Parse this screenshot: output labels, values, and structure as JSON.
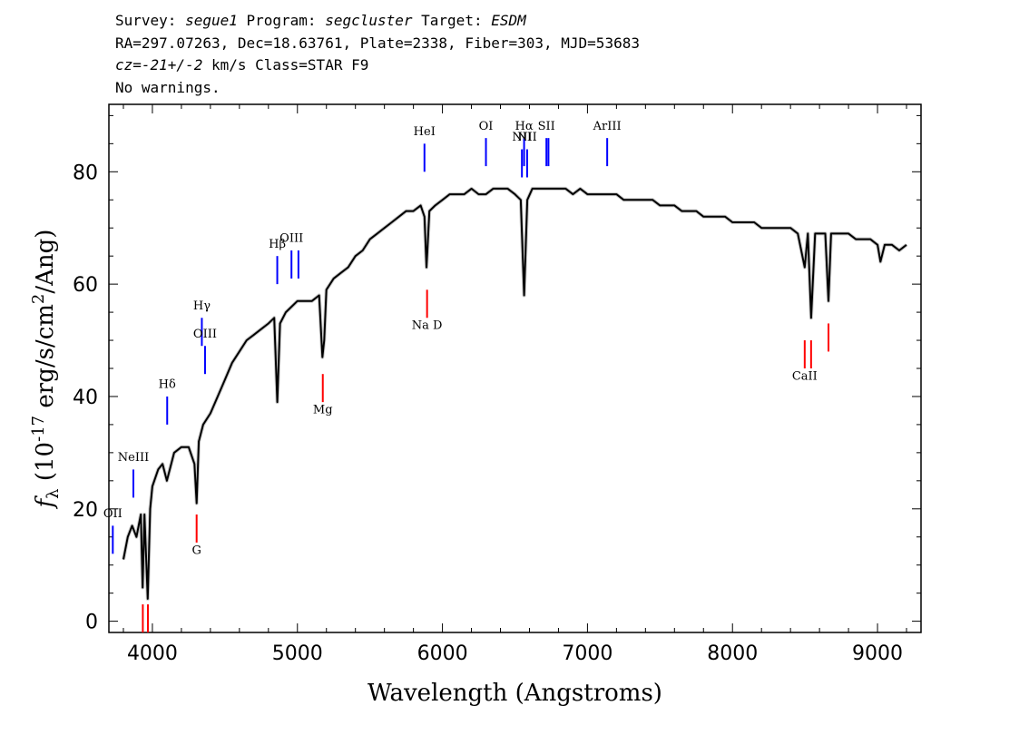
{
  "header": {
    "line1_prefix": "Survey: ",
    "survey": "segue1",
    "program_prefix": " Program: ",
    "program": "segcluster",
    "target_prefix": " Target: ",
    "target": "ESDM",
    "line2": "RA=297.07263, Dec=18.63761, Plate=2338, Fiber=303, MJD=53683",
    "line3_cz": "cz=-21+/-2",
    "line3_rest": " km/s Class=STAR F9",
    "line4": "No warnings."
  },
  "chart_data": {
    "type": "line",
    "title": "",
    "xlabel": "Wavelength (Angstroms)",
    "ylabel": "f_λ (10^-17 erg/s/cm^2/Ang)",
    "xlim": [
      3700,
      9300
    ],
    "ylim": [
      -2,
      92
    ],
    "xticks": [
      4000,
      5000,
      6000,
      7000,
      8000,
      9000
    ],
    "yticks": [
      0,
      20,
      40,
      60,
      80
    ],
    "grid": false,
    "series": [
      {
        "color": "#000000",
        "points": [
          [
            3800,
            11
          ],
          [
            3830,
            15
          ],
          [
            3860,
            17
          ],
          [
            3890,
            15
          ],
          [
            3920,
            19
          ],
          [
            3933,
            6
          ],
          [
            3945,
            19
          ],
          [
            3968,
            4
          ],
          [
            3985,
            20
          ],
          [
            4000,
            24
          ],
          [
            4040,
            27
          ],
          [
            4070,
            28
          ],
          [
            4100,
            25
          ],
          [
            4150,
            30
          ],
          [
            4200,
            31
          ],
          [
            4250,
            31
          ],
          [
            4290,
            28
          ],
          [
            4305,
            21
          ],
          [
            4320,
            32
          ],
          [
            4350,
            35
          ],
          [
            4400,
            37
          ],
          [
            4450,
            40
          ],
          [
            4500,
            43
          ],
          [
            4550,
            46
          ],
          [
            4600,
            48
          ],
          [
            4650,
            50
          ],
          [
            4700,
            51
          ],
          [
            4750,
            52
          ],
          [
            4800,
            53
          ],
          [
            4840,
            54
          ],
          [
            4861,
            39
          ],
          [
            4880,
            53
          ],
          [
            4920,
            55
          ],
          [
            4960,
            56
          ],
          [
            5000,
            57
          ],
          [
            5050,
            57
          ],
          [
            5100,
            57
          ],
          [
            5150,
            58
          ],
          [
            5172,
            47
          ],
          [
            5185,
            50
          ],
          [
            5200,
            59
          ],
          [
            5250,
            61
          ],
          [
            5300,
            62
          ],
          [
            5350,
            63
          ],
          [
            5400,
            65
          ],
          [
            5450,
            66
          ],
          [
            5500,
            68
          ],
          [
            5550,
            69
          ],
          [
            5600,
            70
          ],
          [
            5650,
            71
          ],
          [
            5700,
            72
          ],
          [
            5750,
            73
          ],
          [
            5800,
            73
          ],
          [
            5850,
            74
          ],
          [
            5876,
            72
          ],
          [
            5890,
            63
          ],
          [
            5896,
            66
          ],
          [
            5910,
            73
          ],
          [
            5950,
            74
          ],
          [
            6000,
            75
          ],
          [
            6050,
            76
          ],
          [
            6100,
            76
          ],
          [
            6150,
            76
          ],
          [
            6200,
            77
          ],
          [
            6250,
            76
          ],
          [
            6300,
            76
          ],
          [
            6350,
            77
          ],
          [
            6400,
            77
          ],
          [
            6450,
            77
          ],
          [
            6500,
            76
          ],
          [
            6540,
            75
          ],
          [
            6563,
            58
          ],
          [
            6585,
            75
          ],
          [
            6620,
            77
          ],
          [
            6650,
            77
          ],
          [
            6700,
            77
          ],
          [
            6750,
            77
          ],
          [
            6800,
            77
          ],
          [
            6850,
            77
          ],
          [
            6900,
            76
          ],
          [
            6950,
            77
          ],
          [
            7000,
            76
          ],
          [
            7050,
            76
          ],
          [
            7100,
            76
          ],
          [
            7150,
            76
          ],
          [
            7200,
            76
          ],
          [
            7250,
            75
          ],
          [
            7300,
            75
          ],
          [
            7350,
            75
          ],
          [
            7400,
            75
          ],
          [
            7450,
            75
          ],
          [
            7500,
            74
          ],
          [
            7550,
            74
          ],
          [
            7600,
            74
          ],
          [
            7650,
            73
          ],
          [
            7700,
            73
          ],
          [
            7750,
            73
          ],
          [
            7800,
            72
          ],
          [
            7850,
            72
          ],
          [
            7900,
            72
          ],
          [
            7950,
            72
          ],
          [
            8000,
            71
          ],
          [
            8050,
            71
          ],
          [
            8100,
            71
          ],
          [
            8150,
            71
          ],
          [
            8200,
            70
          ],
          [
            8250,
            70
          ],
          [
            8300,
            70
          ],
          [
            8350,
            70
          ],
          [
            8400,
            70
          ],
          [
            8450,
            69
          ],
          [
            8498,
            63
          ],
          [
            8520,
            69
          ],
          [
            8542,
            54
          ],
          [
            8570,
            69
          ],
          [
            8600,
            69
          ],
          [
            8640,
            69
          ],
          [
            8662,
            57
          ],
          [
            8680,
            69
          ],
          [
            8720,
            69
          ],
          [
            8760,
            69
          ],
          [
            8800,
            69
          ],
          [
            8850,
            68
          ],
          [
            8900,
            68
          ],
          [
            8950,
            68
          ],
          [
            9000,
            67
          ],
          [
            9020,
            64
          ],
          [
            9050,
            67
          ],
          [
            9100,
            67
          ],
          [
            9150,
            66
          ],
          [
            9200,
            67
          ]
        ]
      }
    ],
    "emission_lines": [
      {
        "label": "OII",
        "x": 3727,
        "y_top": 17,
        "y_bottom": 12,
        "label_y": 18.5,
        "color": "#0000ff"
      },
      {
        "label": "NeIII",
        "x": 3869,
        "y_top": 27,
        "y_bottom": 22,
        "label_y": 28.5,
        "color": "#0000ff"
      },
      {
        "label": "Hδ",
        "x": 4102,
        "y_top": 40,
        "y_bottom": 35,
        "label_y": 41.5,
        "color": "#0000ff"
      },
      {
        "label": "Hγ",
        "x": 4341,
        "y_top": 54,
        "y_bottom": 49,
        "label_y": 55.5,
        "color": "#0000ff"
      },
      {
        "label": "OIII",
        "x": 4363,
        "y_top": 49,
        "y_bottom": 44,
        "label_y": 50.5,
        "color": "#0000ff"
      },
      {
        "label": "Hβ",
        "x": 4861,
        "y_top": 65,
        "y_bottom": 60,
        "label_y": 66.5,
        "color": "#0000ff"
      },
      {
        "label": "OIII",
        "x": 4959,
        "y_top": 66,
        "y_bottom": 61,
        "label_y": 67.5,
        "color": "#0000ff"
      },
      {
        "label": "",
        "x": 5007,
        "y_top": 66,
        "y_bottom": 61,
        "label_y": 67.5,
        "color": "#0000ff"
      },
      {
        "label": "HeI",
        "x": 5876,
        "y_top": 85,
        "y_bottom": 80,
        "label_y": 86.5,
        "color": "#0000ff"
      },
      {
        "label": "OI",
        "x": 6300,
        "y_top": 86,
        "y_bottom": 81,
        "label_y": 87.5,
        "color": "#0000ff"
      },
      {
        "label": "NII",
        "x": 6548,
        "y_top": 84,
        "y_bottom": 79,
        "label_y": 85.5,
        "color": "#0000ff"
      },
      {
        "label": "Hα",
        "x": 6563,
        "y_top": 86,
        "y_bottom": 81,
        "label_y": 87.5,
        "color": "#0000ff"
      },
      {
        "label": "NII",
        "x": 6584,
        "y_top": 84,
        "y_bottom": 79,
        "label_y": 85.5,
        "color": "#0000ff"
      },
      {
        "label": "SII",
        "x": 6717,
        "y_top": 86,
        "y_bottom": 81,
        "label_y": 87.5,
        "color": "#0000ff"
      },
      {
        "label": "",
        "x": 6731,
        "y_top": 86,
        "y_bottom": 81,
        "label_y": 87.5,
        "color": "#0000ff"
      },
      {
        "label": "ArIII",
        "x": 7136,
        "y_top": 86,
        "y_bottom": 81,
        "label_y": 87.5,
        "color": "#0000ff"
      }
    ],
    "absorption_lines": [
      {
        "label": "",
        "x": 3934,
        "y_top": 3,
        "y_bottom": -2,
        "label_y": -4,
        "color": "#ff0000"
      },
      {
        "label": "",
        "x": 3969,
        "y_top": 3,
        "y_bottom": -2,
        "label_y": -4,
        "color": "#ff0000"
      },
      {
        "label": "G",
        "x": 4305,
        "y_top": 19,
        "y_bottom": 14,
        "label_y": 12,
        "color": "#ff0000"
      },
      {
        "label": "Mg",
        "x": 5175,
        "y_top": 44,
        "y_bottom": 39,
        "label_y": 37,
        "color": "#ff0000"
      },
      {
        "label": "Na D",
        "x": 5894,
        "y_top": 59,
        "y_bottom": 54,
        "label_y": 52,
        "color": "#ff0000"
      },
      {
        "label": "CaII",
        "x": 8498,
        "y_top": 50,
        "y_bottom": 45,
        "label_y": 43,
        "color": "#ff0000"
      },
      {
        "label": "",
        "x": 8542,
        "y_top": 50,
        "y_bottom": 45,
        "label_y": 43,
        "color": "#ff0000"
      },
      {
        "label": "",
        "x": 8662,
        "y_top": 53,
        "y_bottom": 48,
        "label_y": 43,
        "color": "#ff0000"
      }
    ]
  }
}
